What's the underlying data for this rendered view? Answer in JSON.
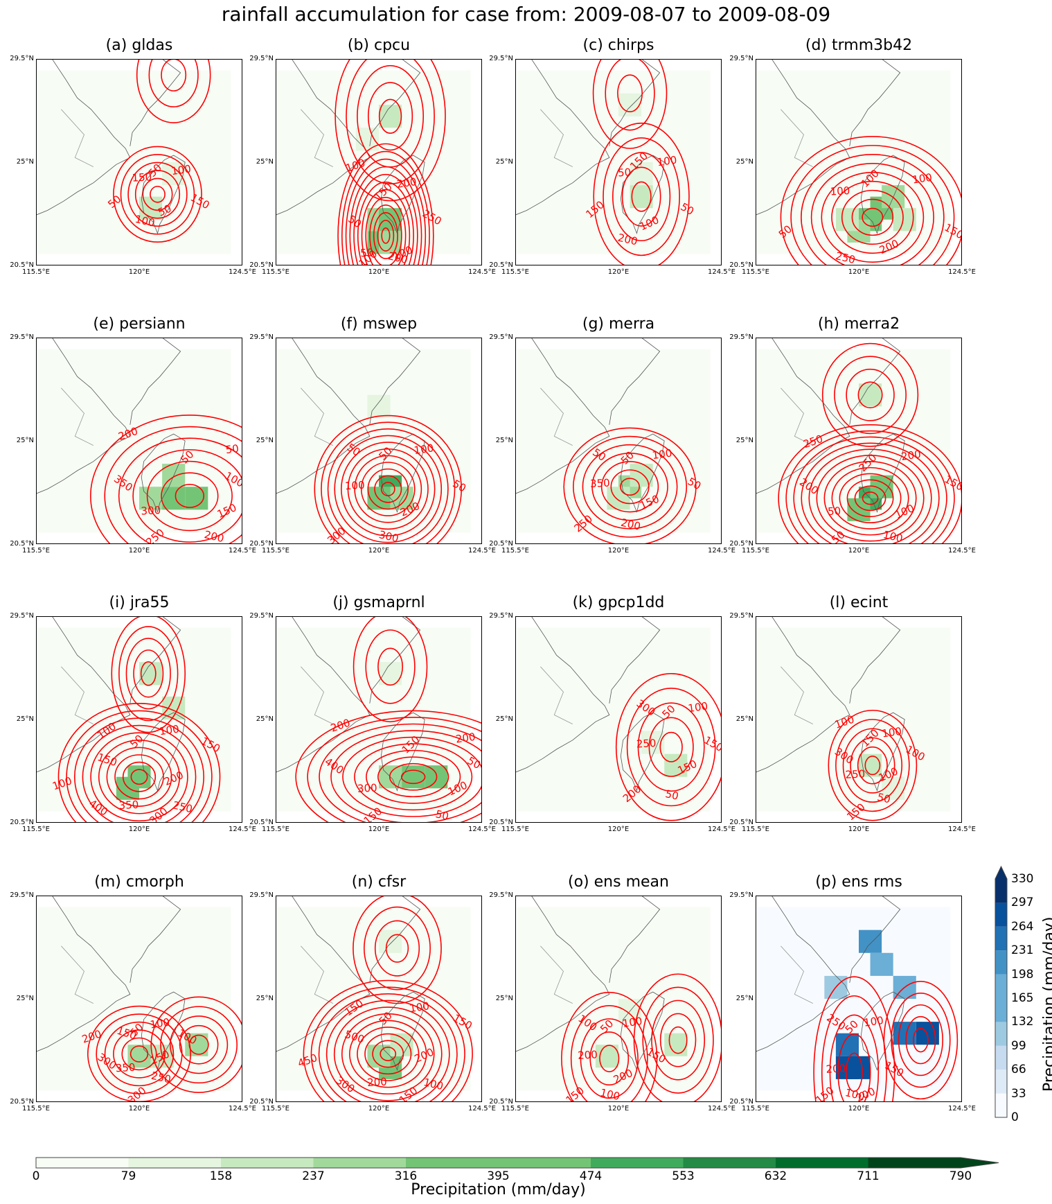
{
  "title": "rainfall accumulation for case from: 2009-08-07 to 2009-08-09",
  "ticks": {
    "lat": [
      "29.5°N",
      "25°N",
      "20.5°N"
    ],
    "lon": [
      "115.5°E",
      "120°E",
      "124.5°E"
    ]
  },
  "colors": {
    "contour": "#ff0000",
    "greens": [
      "#f7fcf5",
      "#e5f5e0",
      "#c7e9c0",
      "#a1d99b",
      "#74c476",
      "#41ab5d",
      "#238b45",
      "#006d2c",
      "#00441b"
    ],
    "blues": [
      "#f7fbff",
      "#deebf7",
      "#c6dbef",
      "#9ecae1",
      "#6baed6",
      "#4292c6",
      "#2171b5",
      "#08519c",
      "#08306b"
    ],
    "coast": "#555555",
    "border": "#999999"
  },
  "chart_data": {
    "type": "heatmap",
    "extent": {
      "lon": [
        115.5,
        124.5
      ],
      "lat": [
        20.5,
        29.5
      ]
    },
    "panels": [
      {
        "title": "(a) gldas",
        "palette": "greens",
        "cells": [
          {
            "lon": 120.5,
            "lat": 23.0,
            "level": 2
          },
          {
            "lon": 121.5,
            "lat": 24.5,
            "level": 1
          }
        ],
        "labels": [
          "50",
          "100",
          "150",
          "50",
          "100",
          "50",
          "150"
        ],
        "centers": [
          {
            "lon": 120.8,
            "lat": 23.6,
            "rx": 1.2,
            "ry": 1.3,
            "levels": 6
          },
          {
            "lon": 121.5,
            "lat": 28.8,
            "rx": 1.0,
            "ry": 1.3,
            "levels": 3
          }
        ]
      },
      {
        "title": "(b) cpcu",
        "palette": "greens",
        "cells": [
          {
            "lon": 120.0,
            "lat": 22.5,
            "level": 3
          },
          {
            "lon": 120.5,
            "lat": 22.5,
            "level": 4
          },
          {
            "lon": 120.0,
            "lat": 21.5,
            "level": 4
          },
          {
            "lon": 120.5,
            "lat": 21.5,
            "level": 3
          },
          {
            "lon": 120.5,
            "lat": 27.0,
            "level": 2
          },
          {
            "lon": 119.5,
            "lat": 26.0,
            "level": 1
          }
        ],
        "labels": [
          "150",
          "200",
          "250",
          "100",
          "200",
          "100",
          "50",
          "50",
          "100"
        ],
        "centers": [
          {
            "lon": 120.3,
            "lat": 21.8,
            "rx": 1.3,
            "ry": 2.5,
            "levels": 12
          },
          {
            "lon": 120.5,
            "lat": 27.0,
            "rx": 1.5,
            "ry": 2.3,
            "levels": 5
          }
        ]
      },
      {
        "title": "(c) chirps",
        "palette": "greens",
        "cells": [
          {
            "lon": 121.0,
            "lat": 23.5,
            "level": 2
          },
          {
            "lon": 120.5,
            "lat": 27.5,
            "level": 1
          },
          {
            "lon": 121.0,
            "lat": 24.5,
            "level": 1
          }
        ],
        "labels": [
          "150",
          "100",
          "50",
          "100",
          "200",
          "150",
          "50"
        ],
        "centers": [
          {
            "lon": 121.0,
            "lat": 23.5,
            "rx": 1.3,
            "ry": 2.0,
            "levels": 5
          },
          {
            "lon": 120.5,
            "lat": 28.0,
            "rx": 1.0,
            "ry": 1.5,
            "levels": 3
          }
        ]
      },
      {
        "title": "(d) trmm3b42",
        "palette": "greens",
        "cells": [
          {
            "lon": 120.5,
            "lat": 22.5,
            "level": 4
          },
          {
            "lon": 121.0,
            "lat": 23.0,
            "level": 4
          },
          {
            "lon": 121.5,
            "lat": 23.5,
            "level": 3
          },
          {
            "lon": 120.0,
            "lat": 22.0,
            "level": 3
          },
          {
            "lon": 119.5,
            "lat": 22.5,
            "level": 2
          },
          {
            "lon": 122.0,
            "lat": 22.5,
            "level": 2
          }
        ],
        "labels": [
          "100",
          "100",
          "150",
          "200",
          "250",
          "50",
          "100"
        ],
        "centers": [
          {
            "lon": 120.6,
            "lat": 22.6,
            "rx": 2.5,
            "ry": 2.2,
            "levels": 9
          }
        ]
      },
      {
        "title": "(e) persiann",
        "palette": "greens",
        "cells": [
          {
            "lon": 121.5,
            "lat": 22.5,
            "level": 4
          },
          {
            "lon": 122.5,
            "lat": 22.5,
            "level": 4
          },
          {
            "lon": 120.5,
            "lat": 22.5,
            "level": 3
          },
          {
            "lon": 121.5,
            "lat": 23.5,
            "level": 3
          }
        ],
        "labels": [
          "50",
          "50",
          "100",
          "150",
          "200",
          "250",
          "300",
          "350",
          "200"
        ],
        "centers": [
          {
            "lon": 122.2,
            "lat": 22.6,
            "rx": 2.7,
            "ry": 2.2,
            "levels": 7
          }
        ]
      },
      {
        "title": "(f) mswep",
        "palette": "greens",
        "cells": [
          {
            "lon": 120.5,
            "lat": 23.0,
            "level": 5
          },
          {
            "lon": 120.0,
            "lat": 22.5,
            "level": 4
          },
          {
            "lon": 121.0,
            "lat": 22.5,
            "level": 3
          },
          {
            "lon": 120.0,
            "lat": 26.5,
            "level": 1
          }
        ],
        "labels": [
          "50",
          "100",
          "50",
          "200",
          "300",
          "300",
          "100",
          "50"
        ],
        "centers": [
          {
            "lon": 120.4,
            "lat": 22.9,
            "rx": 2.0,
            "ry": 2.0,
            "levels": 11
          }
        ]
      },
      {
        "title": "(g) merra",
        "palette": "greens",
        "cells": [
          {
            "lon": 120.5,
            "lat": 23.0,
            "level": 3
          },
          {
            "lon": 120.0,
            "lat": 22.5,
            "level": 2
          },
          {
            "lon": 121.0,
            "lat": 23.5,
            "level": 2
          }
        ],
        "labels": [
          "50",
          "100",
          "50",
          "150",
          "200",
          "250",
          "350",
          "50"
        ],
        "centers": [
          {
            "lon": 120.5,
            "lat": 23.0,
            "rx": 1.8,
            "ry": 1.6,
            "levels": 7
          }
        ]
      },
      {
        "title": "(h) merra2",
        "palette": "greens",
        "cells": [
          {
            "lon": 120.5,
            "lat": 22.5,
            "level": 5
          },
          {
            "lon": 120.0,
            "lat": 22.0,
            "level": 4
          },
          {
            "lon": 121.0,
            "lat": 23.0,
            "level": 4
          },
          {
            "lon": 120.5,
            "lat": 27.0,
            "level": 2
          }
        ],
        "labels": [
          "250",
          "200",
          "150",
          "100",
          "100",
          "50",
          "50",
          "200",
          "250"
        ],
        "centers": [
          {
            "lon": 120.5,
            "lat": 22.5,
            "rx": 2.5,
            "ry": 2.0,
            "levels": 12
          },
          {
            "lon": 120.5,
            "lat": 27.0,
            "rx": 1.3,
            "ry": 1.4,
            "levels": 4
          }
        ]
      },
      {
        "title": "(i) jra55",
        "palette": "greens",
        "cells": [
          {
            "lon": 119.5,
            "lat": 22.0,
            "level": 4
          },
          {
            "lon": 120.0,
            "lat": 22.5,
            "level": 4
          },
          {
            "lon": 120.5,
            "lat": 27.0,
            "level": 2
          },
          {
            "lon": 121.5,
            "lat": 25.5,
            "level": 2
          }
        ],
        "labels": [
          "50",
          "100",
          "150",
          "200",
          "250",
          "300",
          "350",
          "400",
          "100",
          "150",
          "100"
        ],
        "centers": [
          {
            "lon": 120.0,
            "lat": 22.5,
            "rx": 2.2,
            "ry": 2.0,
            "levels": 10
          },
          {
            "lon": 120.4,
            "lat": 27.0,
            "rx": 1.0,
            "ry": 1.6,
            "levels": 5
          }
        ]
      },
      {
        "title": "(j) gsmaprnl",
        "palette": "greens",
        "cells": [
          {
            "lon": 121.5,
            "lat": 22.5,
            "level": 4
          },
          {
            "lon": 122.5,
            "lat": 22.5,
            "level": 4
          },
          {
            "lon": 120.5,
            "lat": 22.5,
            "level": 3
          },
          {
            "lon": 120.5,
            "lat": 27.0,
            "level": 1
          }
        ],
        "labels": [
          "150",
          "200",
          "50",
          "100",
          "50",
          "150",
          "300",
          "400",
          "200"
        ],
        "centers": [
          {
            "lon": 121.5,
            "lat": 22.5,
            "rx": 3.2,
            "ry": 1.8,
            "levels": 10
          },
          {
            "lon": 120.5,
            "lat": 27.3,
            "rx": 1.0,
            "ry": 1.5,
            "levels": 3
          }
        ]
      },
      {
        "title": "(k) gpcp1dd",
        "palette": "greens",
        "cells": [
          {
            "lon": 122.5,
            "lat": 23.0,
            "level": 2
          },
          {
            "lon": 121.5,
            "lat": 24.0,
            "level": 1
          }
        ],
        "labels": [
          "50",
          "100",
          "150",
          "150",
          "50",
          "200",
          "250",
          "300"
        ],
        "centers": [
          {
            "lon": 122.3,
            "lat": 23.8,
            "rx": 1.5,
            "ry": 2.0,
            "levels": 5
          }
        ]
      },
      {
        "title": "(l) ecint",
        "palette": "greens",
        "cells": [
          {
            "lon": 120.5,
            "lat": 23.0,
            "level": 2
          },
          {
            "lon": 121.5,
            "lat": 22.0,
            "level": 1
          }
        ],
        "labels": [
          "150",
          "100",
          "100",
          "100",
          "50",
          "150",
          "250",
          "300",
          "100"
        ],
        "centers": [
          {
            "lon": 120.6,
            "lat": 23.0,
            "rx": 1.2,
            "ry": 1.5,
            "levels": 6
          }
        ]
      },
      {
        "title": "(m) cmorph",
        "palette": "greens",
        "cells": [
          {
            "lon": 120.0,
            "lat": 22.5,
            "level": 3
          },
          {
            "lon": 122.5,
            "lat": 23.0,
            "level": 3
          },
          {
            "lon": 121.0,
            "lat": 22.5,
            "level": 2
          }
        ],
        "labels": [
          "50",
          "100",
          "100",
          "150",
          "250",
          "300",
          "350",
          "300",
          "200",
          "150"
        ],
        "centers": [
          {
            "lon": 120.0,
            "lat": 22.6,
            "rx": 1.4,
            "ry": 1.3,
            "levels": 6
          },
          {
            "lon": 122.6,
            "lat": 23.0,
            "rx": 1.3,
            "ry": 1.3,
            "levels": 5
          }
        ]
      },
      {
        "title": "(n) cfsr",
        "palette": "greens",
        "cells": [
          {
            "lon": 120.5,
            "lat": 22.0,
            "level": 4
          },
          {
            "lon": 120.0,
            "lat": 22.5,
            "level": 3
          },
          {
            "lon": 121.0,
            "lat": 23.0,
            "level": 2
          },
          {
            "lon": 120.5,
            "lat": 27.5,
            "level": 1
          }
        ],
        "labels": [
          "50",
          "100",
          "150",
          "200",
          "100",
          "150",
          "200",
          "300",
          "450",
          "500",
          "150"
        ],
        "centers": [
          {
            "lon": 120.4,
            "lat": 22.6,
            "rx": 2.3,
            "ry": 2.0,
            "levels": 11
          },
          {
            "lon": 120.8,
            "lat": 27.2,
            "rx": 1.2,
            "ry": 1.5,
            "levels": 4
          }
        ]
      },
      {
        "title": "(o) ens mean",
        "palette": "greens",
        "cells": [
          {
            "lon": 119.5,
            "lat": 22.5,
            "level": 2
          },
          {
            "lon": 122.5,
            "lat": 23.0,
            "level": 2
          },
          {
            "lon": 120.5,
            "lat": 24.5,
            "level": 1
          }
        ],
        "labels": [
          "50",
          "100",
          "150",
          "200",
          "100",
          "150",
          "200",
          "100"
        ],
        "centers": [
          {
            "lon": 119.6,
            "lat": 22.4,
            "rx": 1.3,
            "ry": 1.8,
            "levels": 5
          },
          {
            "lon": 122.6,
            "lat": 23.2,
            "rx": 1.2,
            "ry": 1.8,
            "levels": 5
          }
        ]
      },
      {
        "title": "(p) ens rms",
        "palette": "blues",
        "cells": [
          {
            "lon": 119.5,
            "lat": 23.0,
            "level": 6
          },
          {
            "lon": 119.5,
            "lat": 22.0,
            "level": 7
          },
          {
            "lon": 120.0,
            "lat": 22.0,
            "level": 7
          },
          {
            "lon": 123.0,
            "lat": 23.5,
            "level": 7
          },
          {
            "lon": 122.0,
            "lat": 23.5,
            "level": 6
          },
          {
            "lon": 120.5,
            "lat": 27.5,
            "level": 5
          },
          {
            "lon": 121.0,
            "lat": 26.5,
            "level": 4
          },
          {
            "lon": 122.0,
            "lat": 25.5,
            "level": 4
          },
          {
            "lon": 119.0,
            "lat": 25.5,
            "level": 3
          }
        ],
        "labels": [
          "50",
          "100",
          "150",
          "200",
          "100",
          "150",
          "200",
          "250"
        ],
        "centers": [
          {
            "lon": 119.8,
            "lat": 21.8,
            "rx": 1.1,
            "ry": 2.6,
            "levels": 5
          },
          {
            "lon": 122.7,
            "lat": 23.2,
            "rx": 1.0,
            "ry": 1.6,
            "levels": 5
          }
        ]
      }
    ],
    "colorbar_green": {
      "ticks": [
        "0",
        "79",
        "158",
        "237",
        "316",
        "395",
        "474",
        "553",
        "632",
        "711",
        "790"
      ],
      "label": "Precipitation (mm/day)"
    },
    "colorbar_blue": {
      "ticks": [
        "0",
        "33",
        "66",
        "99",
        "132",
        "165",
        "198",
        "231",
        "264",
        "297",
        "330"
      ],
      "label": "Precipitation (mm/day)"
    }
  }
}
